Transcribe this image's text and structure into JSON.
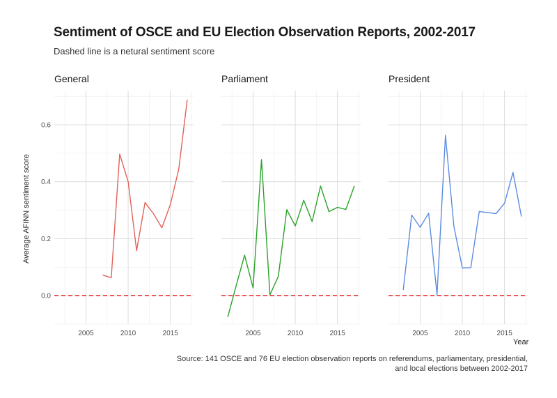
{
  "title": "Sentiment of OSCE and EU Election Observation Reports, 2002-2017",
  "subtitle": "Dashed line is a netural sentiment score",
  "caption_line1": "Source: 141 OSCE and 76 EU election observation reports on referendums, parliamentary, presidential,",
  "caption_line2": "and local elections between 2002-2017",
  "chart_data": {
    "type": "line",
    "xlabel": "Year",
    "ylabel": "Average AFINN sentiment score",
    "xlim": [
      2001.25,
      2017.75
    ],
    "ylim": [
      -0.1,
      0.72
    ],
    "x_ticks": [
      2005,
      2010,
      2015
    ],
    "y_ticks": [
      0.0,
      0.2,
      0.4,
      0.6
    ],
    "y_tick_labels": [
      "0.0",
      "0.2",
      "0.4",
      "0.6"
    ],
    "reference_line": {
      "y": 0.0,
      "style": "dashed",
      "color": "#e03030"
    },
    "grid": true,
    "facets": [
      {
        "label": "General",
        "color": "#e0625b",
        "x": [
          2007,
          2008,
          2009,
          2010,
          2011,
          2012,
          2013,
          2014,
          2015,
          2016,
          2017
        ],
        "y": [
          0.072,
          0.063,
          0.497,
          0.4,
          0.158,
          0.327,
          0.288,
          0.238,
          0.32,
          0.445,
          0.688
        ]
      },
      {
        "label": "Parliament",
        "color": "#2aa22a",
        "x": [
          2002,
          2003,
          2004,
          2005,
          2006,
          2007,
          2008,
          2009,
          2010,
          2011,
          2012,
          2013,
          2014,
          2015,
          2016,
          2017
        ],
        "y": [
          -0.075,
          0.035,
          0.142,
          0.027,
          0.478,
          0.003,
          0.068,
          0.302,
          0.245,
          0.335,
          0.26,
          0.385,
          0.295,
          0.31,
          0.303,
          0.385
        ]
      },
      {
        "label": "President",
        "color": "#5b8ce0",
        "x": [
          2003,
          2004,
          2005,
          2006,
          2007,
          2008,
          2009,
          2010,
          2011,
          2012,
          2013,
          2014,
          2015,
          2016,
          2017
        ],
        "y": [
          0.02,
          0.283,
          0.24,
          0.29,
          0.003,
          0.563,
          0.243,
          0.097,
          0.098,
          0.295,
          0.292,
          0.288,
          0.325,
          0.433,
          0.278
        ]
      }
    ]
  }
}
